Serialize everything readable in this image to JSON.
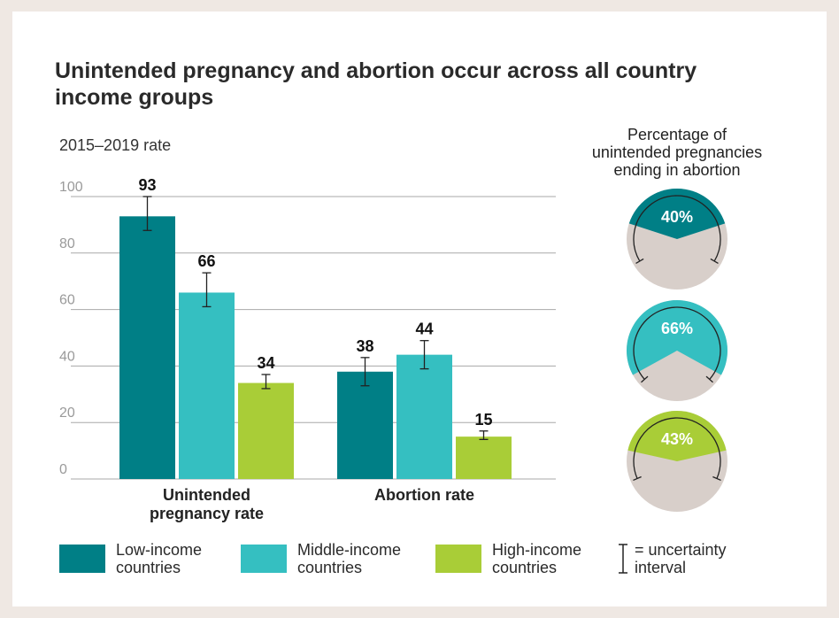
{
  "title": "Unintended pregnancy and abortion occur across all country income groups",
  "chart_data": [
    {
      "type": "bar",
      "ylabel": "2015–2019 rate",
      "ylim": [
        0,
        100
      ],
      "yticks": [
        "0",
        "20",
        "40",
        "60",
        "80",
        "100"
      ],
      "grid": true,
      "categories": [
        "Unintended pregnancy rate",
        "Abortion rate"
      ],
      "series": [
        {
          "name": "Low-income countries",
          "color": "#007f86",
          "values": [
            93,
            38
          ],
          "uncertainty": [
            [
              88,
              100
            ],
            [
              33,
              43
            ]
          ]
        },
        {
          "name": "Middle-income countries",
          "color": "#35bfc1",
          "values": [
            66,
            44
          ],
          "uncertainty": [
            [
              61,
              73
            ],
            [
              39,
              49
            ]
          ]
        },
        {
          "name": "High-income countries",
          "color": "#a9cd37",
          "values": [
            34,
            15
          ],
          "uncertainty": [
            [
              32,
              37
            ],
            [
              14,
              17
            ]
          ]
        }
      ],
      "legend_position": "bottom"
    },
    {
      "type": "pie",
      "title": "Percentage of unintended pregnancies ending in abortion",
      "remainder_color": "#d8cfca",
      "slices": [
        {
          "label": "40%",
          "value": 40,
          "color": "#007f86",
          "uncertainty": [
            33,
            67
          ]
        },
        {
          "label": "66%",
          "value": 66,
          "color": "#35bfc1",
          "uncertainty": [
            60,
            73
          ]
        },
        {
          "label": "43%",
          "value": 43,
          "color": "#a9cd37",
          "uncertainty": [
            35,
            63
          ]
        }
      ]
    }
  ],
  "legend": {
    "items": [
      {
        "label": "Low-income countries",
        "color": "#007f86"
      },
      {
        "label": "Middle-income countries",
        "color": "#35bfc1"
      },
      {
        "label": "High-income countries",
        "color": "#a9cd37"
      }
    ],
    "uncertainty_label": "= uncertainty interval"
  }
}
